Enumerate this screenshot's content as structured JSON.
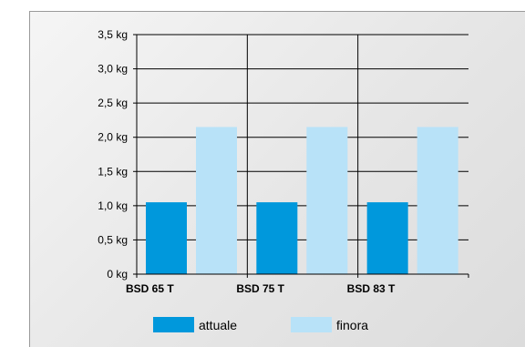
{
  "chart_data": {
    "type": "bar",
    "categories": [
      "BSD 65 T",
      "BSD 75 T",
      "BSD 83 T"
    ],
    "series": [
      {
        "name": "attuale",
        "values": [
          1.05,
          1.05,
          1.05
        ],
        "color": "#0098dc"
      },
      {
        "name": "finora",
        "values": [
          2.15,
          2.15,
          2.15
        ],
        "color": "#b8e2f8"
      }
    ],
    "y_ticks": [
      "0 kg",
      "0,5 kg",
      "1,0 kg",
      "1,5 kg",
      "2,0 kg",
      "2,5 kg",
      "3,0 kg",
      "3,5 kg"
    ],
    "ylim": [
      0,
      3.5
    ],
    "y_unit": "kg",
    "grid": true,
    "legend_position": "bottom",
    "background": "#e8e8e8"
  }
}
